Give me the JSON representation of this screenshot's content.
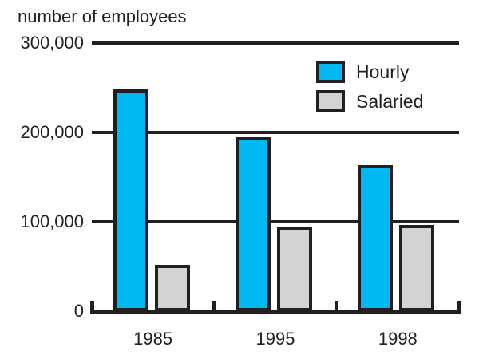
{
  "title": "number of employees",
  "colors": {
    "hourly": "#00B9F2",
    "salaried": "#D2D3D4",
    "line": "#231F20",
    "text": "#231F20",
    "background": "#FFFFFF"
  },
  "chart_data": {
    "type": "bar",
    "title": "number of employees",
    "categories": [
      "1985",
      "1995",
      "1998"
    ],
    "series": [
      {
        "name": "Hourly",
        "color_key": "hourly",
        "values": [
          248000,
          195000,
          163000
        ]
      },
      {
        "name": "Salaried",
        "color_key": "salaried",
        "values": [
          52000,
          95000,
          96000
        ]
      }
    ],
    "ylabel": "number of employees",
    "ylim": [
      0,
      300000
    ],
    "yticks": [
      0,
      100000,
      200000,
      300000
    ],
    "ytick_labels": [
      "0",
      "100,000",
      "200,000",
      "300,000"
    ],
    "grid": true,
    "legend_position": "top-right"
  }
}
